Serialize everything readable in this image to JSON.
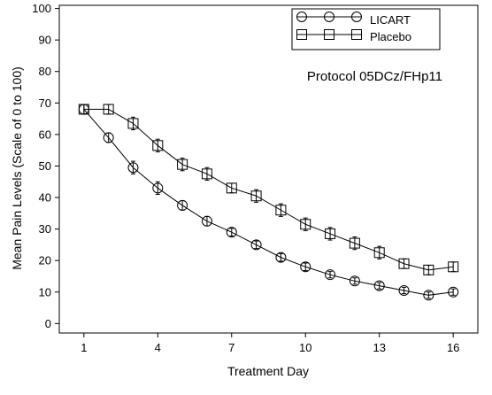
{
  "chart_data": {
    "type": "line",
    "xlabel": "Treatment Day",
    "ylabel": "Mean Pain Levels (Scale of 0 to 100)",
    "annotation": "Protocol 05DCz/FHp11",
    "xlim": [
      0,
      17
    ],
    "ylim": [
      -3,
      101
    ],
    "xticks": [
      1,
      4,
      7,
      10,
      13,
      16
    ],
    "yticks": [
      0,
      10,
      20,
      30,
      40,
      50,
      60,
      70,
      80,
      90,
      100
    ],
    "grid": false,
    "legend_position": "top-right",
    "x": [
      1,
      2,
      3,
      4,
      5,
      6,
      7,
      8,
      9,
      10,
      11,
      12,
      13,
      14,
      15,
      16
    ],
    "series": [
      {
        "name": "LICART",
        "marker": "circle",
        "values": [
          68,
          59,
          49.5,
          43,
          37.5,
          32.5,
          29,
          25,
          21,
          18,
          15.5,
          13.5,
          12,
          10.5,
          9,
          10
        ],
        "error": [
          1.5,
          1.5,
          2,
          2,
          1.5,
          1.5,
          1.2,
          1.2,
          1.2,
          1.2,
          1,
          1,
          1,
          1,
          1,
          1
        ]
      },
      {
        "name": "Placebo",
        "marker": "square",
        "values": [
          68,
          68,
          63.5,
          56.5,
          50.5,
          47.5,
          43,
          40.5,
          36,
          31.5,
          28.5,
          25.5,
          22.5,
          19,
          17,
          18
        ],
        "error": [
          1.5,
          1.5,
          2,
          2,
          2,
          2,
          1.5,
          2,
          2,
          2,
          2,
          2,
          2,
          1.5,
          1.5,
          1.5
        ]
      }
    ]
  }
}
